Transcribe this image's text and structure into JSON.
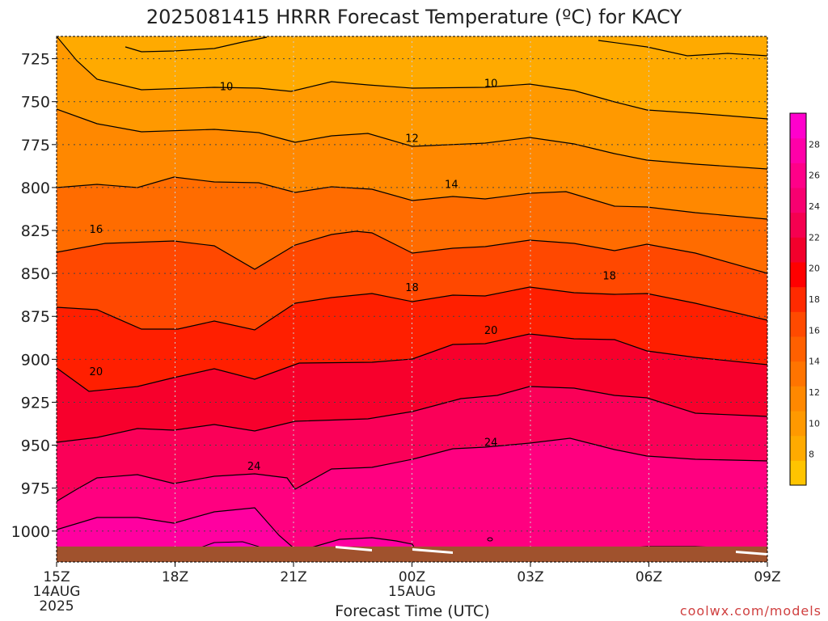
{
  "chart_data": {
    "type": "heatmap",
    "title": "2025081415 HRRR Forecast Temperature (ºC) for KACY",
    "xlabel": "Forecast Time (UTC)",
    "ylabel": "",
    "credit": "coolwx.com/models",
    "x_ticks": [
      {
        "label": "15Z",
        "sub": [
          "14AUG",
          "2025"
        ]
      },
      {
        "label": "18Z",
        "sub": []
      },
      {
        "label": "21Z",
        "sub": []
      },
      {
        "label": "00Z",
        "sub": [
          "15AUG"
        ]
      },
      {
        "label": "03Z",
        "sub": []
      },
      {
        "label": "06Z",
        "sub": []
      },
      {
        "label": "09Z",
        "sub": []
      }
    ],
    "x_hours": [
      15,
      33
    ],
    "y_ticks": [
      725,
      750,
      775,
      800,
      825,
      850,
      875,
      900,
      925,
      950,
      975,
      1000
    ],
    "y_range_hpa": [
      712,
      1018
    ],
    "surface_pressure_hpa": 1009,
    "colorbar_labels": [
      8,
      10,
      12,
      14,
      16,
      18,
      20,
      22,
      24,
      26,
      28
    ],
    "colorbar_range_c": [
      6,
      30
    ],
    "colorbar_colors": [
      "#ffc400",
      "#ffaa00",
      "#ff9900",
      "#ff8800",
      "#ff7400",
      "#ff6000",
      "#ff4a00",
      "#ff2a00",
      "#ff0000",
      "#f2002c",
      "#f50050",
      "#f80070",
      "#ff0088",
      "#ff00a8",
      "#ff00cc"
    ],
    "band_colors": {
      "below_10": "#ffaa00",
      "10_to_12": "#ff9900",
      "12_to_14": "#ff8800",
      "14_to_16": "#ff6c00",
      "16_to_18": "#ff4800",
      "18_to_20": "#ff1f00",
      "20_to_22": "#f7002c",
      "22_to_24": "#fa0058",
      "24_to_26": "#ff0080",
      "above_26": "#ff00a0",
      "ground": "#a0522d"
    },
    "contour_levels": [
      10,
      12,
      14,
      16,
      18,
      20,
      22,
      24,
      26
    ],
    "contour_labels": [
      {
        "value": "10",
        "hour": 19.3,
        "hpa": 741
      },
      {
        "value": "10",
        "hour": 26.0,
        "hpa": 739
      },
      {
        "value": "12",
        "hour": 24.0,
        "hpa": 771
      },
      {
        "value": "14",
        "hour": 25.0,
        "hpa": 798
      },
      {
        "value": "16",
        "hour": 16.0,
        "hpa": 824
      },
      {
        "value": "18",
        "hour": 24.0,
        "hpa": 858
      },
      {
        "value": "18",
        "hour": 29.0,
        "hpa": 851
      },
      {
        "value": "20",
        "hour": 16.0,
        "hpa": 907
      },
      {
        "value": "20",
        "hour": 26.0,
        "hpa": 883
      },
      {
        "value": "24",
        "hour": 20.0,
        "hpa": 962
      },
      {
        "value": "24",
        "hour": 26.0,
        "hpa": 948
      }
    ],
    "grid": true
  }
}
